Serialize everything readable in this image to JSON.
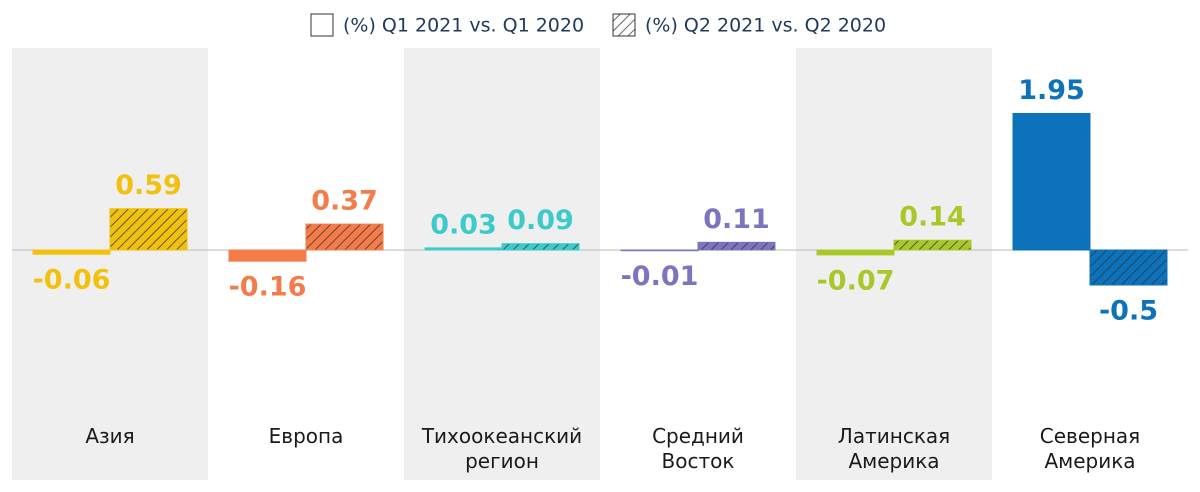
{
  "chart_data": {
    "type": "bar",
    "categories": [
      "Азия",
      "Европа",
      "Тихоокеанский\nрегион",
      "Средний\nВосток",
      "Латинская\nАмерика",
      "Северная\nАмерика"
    ],
    "colors": [
      "#f2c10e",
      "#f47c4a",
      "#3dcaca",
      "#7b74c0",
      "#a8c82a",
      "#0b72bb"
    ],
    "series": [
      {
        "name": "(%) Q1 2021 vs. Q1 2020",
        "hatch": false,
        "values": [
          -0.06,
          -0.16,
          0.03,
          -0.01,
          -0.07,
          1.95
        ]
      },
      {
        "name": "(%) Q2 2021 vs. Q2 2020",
        "hatch": true,
        "values": [
          0.59,
          0.37,
          0.09,
          0.11,
          0.14,
          -0.5
        ]
      }
    ]
  }
}
